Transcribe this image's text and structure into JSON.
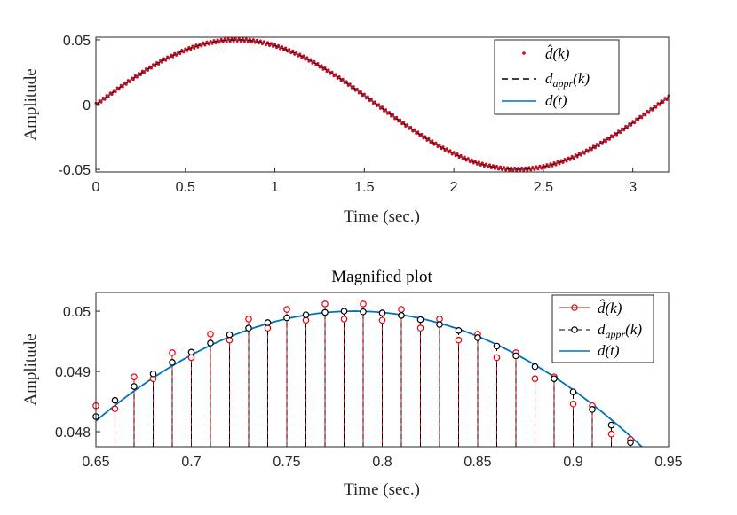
{
  "chart_data": [
    {
      "type": "line",
      "title": "",
      "xlabel": "Time (sec.)",
      "ylabel": "Amplitude",
      "xlim": [
        0,
        3.2
      ],
      "ylim": [
        -0.052,
        0.052
      ],
      "xticks": [
        0,
        0.5,
        1,
        1.5,
        2,
        2.5,
        3
      ],
      "xtick_labels": [
        "0",
        "0.5",
        "1",
        "1.5",
        "2",
        "2.5",
        "3"
      ],
      "yticks": [
        -0.05,
        0,
        0.05
      ],
      "ytick_labels": [
        "-0.05",
        "0",
        "0.05"
      ],
      "legend_position": "top-right",
      "legend": [
        {
          "label": "d̂(k)",
          "style": "red dots"
        },
        {
          "label": "d_appr(k)",
          "style": "black dashed line"
        },
        {
          "label": "d(t)",
          "style": "blue solid line"
        }
      ],
      "signal": {
        "amplitude": 0.05,
        "angular_frequency": 2,
        "x_start": 0,
        "x_end": 3.2,
        "sample_step": 0.01
      },
      "series": [
        {
          "name": "d̂(k)",
          "color": "#e8000b",
          "kind": "samples"
        },
        {
          "name": "d_appr(k)",
          "color": "#000000",
          "kind": "dashed"
        },
        {
          "name": "d(t)",
          "color": "#0072bd",
          "kind": "solid"
        }
      ]
    },
    {
      "type": "line",
      "title": "Magnified plot",
      "xlabel": "Time (sec.)",
      "ylabel": "Amplitude",
      "xlim": [
        0.65,
        0.95
      ],
      "ylim": [
        0.04775,
        0.05031
      ],
      "xticks": [
        0.65,
        0.7,
        0.75,
        0.8,
        0.85,
        0.9,
        0.95
      ],
      "xtick_labels": [
        "0.65",
        "0.7",
        "0.75",
        "0.8",
        "0.85",
        "0.9",
        "0.95"
      ],
      "yticks": [
        0.048,
        0.049,
        0.05
      ],
      "ytick_labels": [
        "0.048",
        "0.049",
        "0.05"
      ],
      "legend_position": "top-right",
      "legend": [
        {
          "label": "d̂(k)",
          "style": "red circles on stems"
        },
        {
          "label": "d_appr(k)",
          "style": "black circles on dashed stems"
        },
        {
          "label": "d(t)",
          "style": "blue solid line"
        }
      ],
      "samples_x": [
        0.65,
        0.66,
        0.67,
        0.68,
        0.69,
        0.7,
        0.71,
        0.72,
        0.73,
        0.74,
        0.75,
        0.76,
        0.77,
        0.78,
        0.79,
        0.8,
        0.81,
        0.82,
        0.83,
        0.84,
        0.85,
        0.86,
        0.87,
        0.88,
        0.89,
        0.9,
        0.91,
        0.92,
        0.93
      ],
      "series": [
        {
          "name": "d̂(k)",
          "color": "#e8000b",
          "kind": "stem",
          "values": [
            0.04843,
            0.04838,
            0.04891,
            0.04888,
            0.04931,
            0.04923,
            0.04962,
            0.04952,
            0.04987,
            0.04972,
            0.05003,
            0.04985,
            0.05012,
            0.04987,
            0.05012,
            0.04985,
            0.05003,
            0.04972,
            0.04987,
            0.04952,
            0.04962,
            0.04923,
            0.04931,
            0.04888,
            0.04891,
            0.04846,
            0.04843,
            0.04796,
            0.04787
          ]
        },
        {
          "name": "d_appr(k)",
          "color": "#000000",
          "kind": "stem",
          "values": [
            0.04825,
            0.04852,
            0.04875,
            0.04896,
            0.04915,
            0.04932,
            0.04947,
            0.04961,
            0.04972,
            0.04981,
            0.04989,
            0.04994,
            0.04998,
            0.05,
            0.04999,
            0.04997,
            0.04993,
            0.04986,
            0.04978,
            0.04968,
            0.04956,
            0.04942,
            0.04926,
            0.04908,
            0.04888,
            0.04866,
            0.04837,
            0.04811,
            0.04782
          ]
        },
        {
          "name": "d(t)",
          "color": "#0072bd",
          "kind": "solid",
          "amplitude": 0.05,
          "angular_frequency": 2
        }
      ]
    }
  ]
}
